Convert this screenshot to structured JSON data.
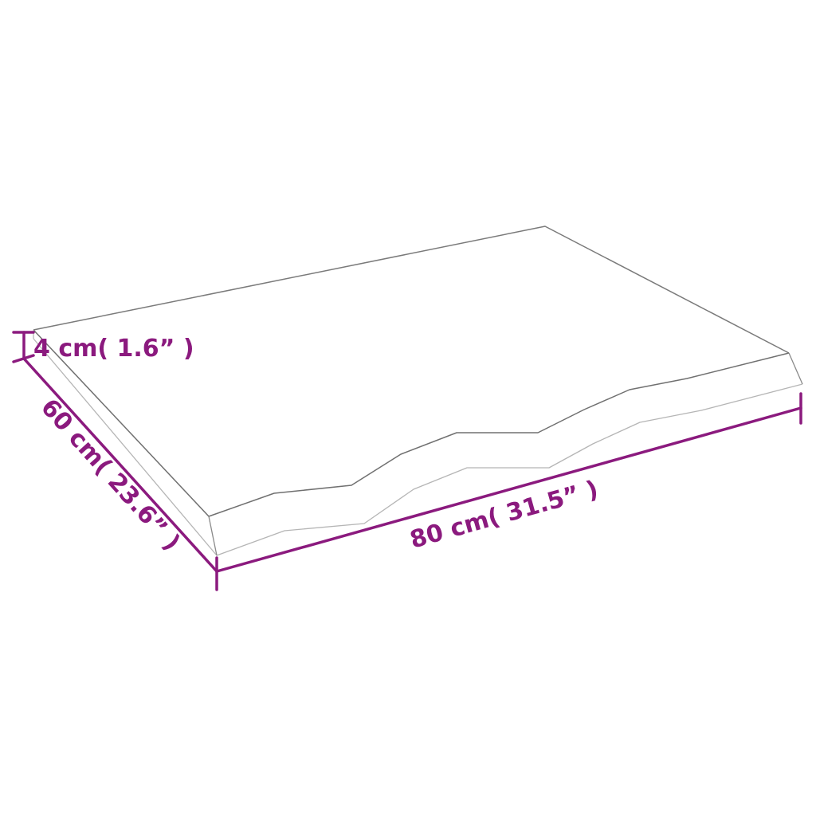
{
  "colors": {
    "dimension": "#8b1a7e",
    "outline": "#7a7a7a",
    "outline_light": "#b5b5b5",
    "background": "#ffffff"
  },
  "dimensions": {
    "thickness": "4 cm( 1.6”  )",
    "depth": "60 cm( 23.6”  )",
    "width": "80 cm( 31.5”  )"
  }
}
